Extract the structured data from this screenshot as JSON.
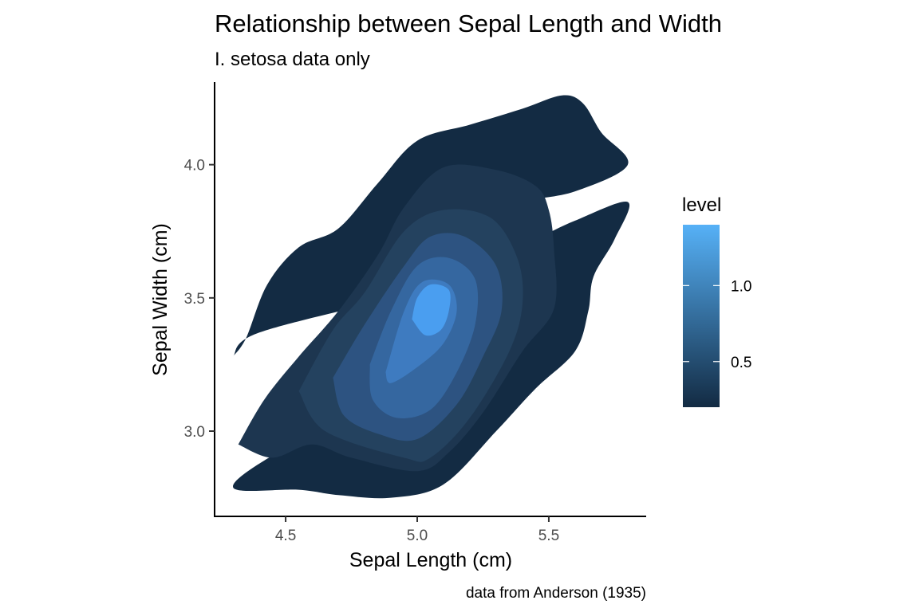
{
  "chart_data": {
    "type": "density_contour_filled",
    "title": "Relationship between Sepal Length and Width",
    "subtitle": "I. setosa data only",
    "xlabel": "Sepal Length (cm)",
    "ylabel": "Sepal Width (cm)",
    "caption": "data from Anderson (1935)",
    "xlim": [
      4.23,
      5.87
    ],
    "ylim": [
      2.68,
      4.31
    ],
    "x_ticks": [
      {
        "value": 4.5,
        "label": "4.5"
      },
      {
        "value": 5.0,
        "label": "5.0"
      },
      {
        "value": 5.5,
        "label": "5.5"
      }
    ],
    "y_ticks": [
      {
        "value": 3.0,
        "label": "3.0"
      },
      {
        "value": 3.5,
        "label": "3.5"
      },
      {
        "value": 4.0,
        "label": "4.0"
      }
    ],
    "grid": false,
    "legend": {
      "title": "level",
      "position": "right",
      "range": [
        0.2,
        1.4
      ],
      "ticks": [
        {
          "value": 1.0,
          "label": "1.0"
        },
        {
          "value": 0.5,
          "label": "0.5"
        }
      ],
      "color_low": "#132B43",
      "color_high": "#56B1F7"
    },
    "bands": [
      {
        "level": 0.2,
        "color": "#132B43",
        "regions": [
          [
            [
              4.3,
              3.28
            ],
            [
              4.35,
              3.35
            ],
            [
              4.43,
              3.55
            ],
            [
              4.55,
              3.69
            ],
            [
              4.7,
              3.76
            ],
            [
              4.85,
              3.93
            ],
            [
              5.0,
              4.09
            ],
            [
              5.2,
              4.15
            ],
            [
              5.4,
              4.21
            ],
            [
              5.55,
              4.26
            ],
            [
              5.63,
              4.23
            ],
            [
              5.7,
              4.12
            ],
            [
              5.8,
              4.0
            ],
            [
              5.6,
              3.9
            ],
            [
              5.4,
              3.86
            ],
            [
              5.3,
              3.8
            ],
            [
              5.25,
              3.6
            ],
            [
              4.95,
              3.51
            ],
            [
              4.4,
              3.37
            ],
            [
              4.3,
              3.28
            ]
          ],
          [
            [
              5.3,
              3.65
            ],
            [
              5.45,
              3.72
            ],
            [
              5.6,
              3.79
            ],
            [
              5.8,
              3.86
            ],
            [
              5.75,
              3.72
            ],
            [
              5.67,
              3.58
            ],
            [
              5.65,
              3.45
            ],
            [
              5.6,
              3.3
            ],
            [
              5.45,
              3.16
            ],
            [
              5.3,
              3.0
            ],
            [
              5.1,
              2.8
            ],
            [
              4.9,
              2.75
            ],
            [
              4.7,
              2.76
            ],
            [
              4.55,
              2.78
            ],
            [
              4.3,
              2.79
            ],
            [
              4.52,
              2.95
            ],
            [
              5.0,
              3.2
            ],
            [
              5.3,
              3.65
            ]
          ]
        ]
      },
      {
        "level": 0.4,
        "color": "#1D3650",
        "regions": [
          [
            [
              4.32,
              2.95
            ],
            [
              4.42,
              3.12
            ],
            [
              4.55,
              3.28
            ],
            [
              4.7,
              3.45
            ],
            [
              4.85,
              3.66
            ],
            [
              4.95,
              3.84
            ],
            [
              5.1,
              3.99
            ],
            [
              5.3,
              3.98
            ],
            [
              5.45,
              3.92
            ],
            [
              5.5,
              3.83
            ],
            [
              5.52,
              3.68
            ],
            [
              5.52,
              3.46
            ],
            [
              5.4,
              3.3
            ],
            [
              5.25,
              3.07
            ],
            [
              5.12,
              2.92
            ],
            [
              5.0,
              2.85
            ],
            [
              4.75,
              2.9
            ],
            [
              4.6,
              2.95
            ],
            [
              4.45,
              2.9
            ],
            [
              4.32,
              2.95
            ]
          ]
        ]
      },
      {
        "level": 0.6,
        "color": "#24425F",
        "regions": [
          [
            [
              4.55,
              3.15
            ],
            [
              4.68,
              3.38
            ],
            [
              4.8,
              3.52
            ],
            [
              4.95,
              3.75
            ],
            [
              5.1,
              3.83
            ],
            [
              5.28,
              3.8
            ],
            [
              5.38,
              3.65
            ],
            [
              5.4,
              3.48
            ],
            [
              5.35,
              3.3
            ],
            [
              5.2,
              3.05
            ],
            [
              5.05,
              2.9
            ],
            [
              4.95,
              2.9
            ],
            [
              4.65,
              3.0
            ],
            [
              4.55,
              3.15
            ]
          ]
        ]
      },
      {
        "level": 0.8,
        "color": "#2D5381",
        "regions": [
          [
            [
              4.68,
              3.2
            ],
            [
              4.8,
              3.4
            ],
            [
              4.95,
              3.62
            ],
            [
              5.05,
              3.73
            ],
            [
              5.18,
              3.73
            ],
            [
              5.3,
              3.62
            ],
            [
              5.32,
              3.45
            ],
            [
              5.25,
              3.28
            ],
            [
              5.15,
              3.1
            ],
            [
              5.0,
              2.97
            ],
            [
              4.85,
              2.99
            ],
            [
              4.72,
              3.06
            ],
            [
              4.68,
              3.2
            ]
          ]
        ]
      },
      {
        "level": 1.0,
        "color": "#3567A0",
        "regions": [
          [
            [
              4.82,
              3.25
            ],
            [
              4.9,
              3.45
            ],
            [
              5.0,
              3.62
            ],
            [
              5.12,
              3.65
            ],
            [
              5.22,
              3.57
            ],
            [
              5.22,
              3.4
            ],
            [
              5.15,
              3.22
            ],
            [
              5.05,
              3.08
            ],
            [
              4.92,
              3.05
            ],
            [
              4.83,
              3.12
            ],
            [
              4.82,
              3.25
            ]
          ]
        ]
      },
      {
        "level": 1.2,
        "color": "#3E7BC0",
        "regions": [
          [
            [
              4.88,
              3.22
            ],
            [
              4.95,
              3.45
            ],
            [
              5.02,
              3.56
            ],
            [
              5.12,
              3.55
            ],
            [
              5.15,
              3.45
            ],
            [
              5.1,
              3.33
            ],
            [
              5.0,
              3.24
            ],
            [
              4.9,
              3.18
            ],
            [
              4.88,
              3.22
            ]
          ]
        ]
      },
      {
        "level": 1.4,
        "color": "#4A9EF0",
        "regions": [
          [
            [
              4.98,
              3.42
            ],
            [
              5.0,
              3.5
            ],
            [
              5.05,
              3.55
            ],
            [
              5.12,
              3.53
            ],
            [
              5.12,
              3.45
            ],
            [
              5.09,
              3.38
            ],
            [
              5.03,
              3.36
            ],
            [
              4.98,
              3.42
            ]
          ]
        ]
      }
    ]
  }
}
